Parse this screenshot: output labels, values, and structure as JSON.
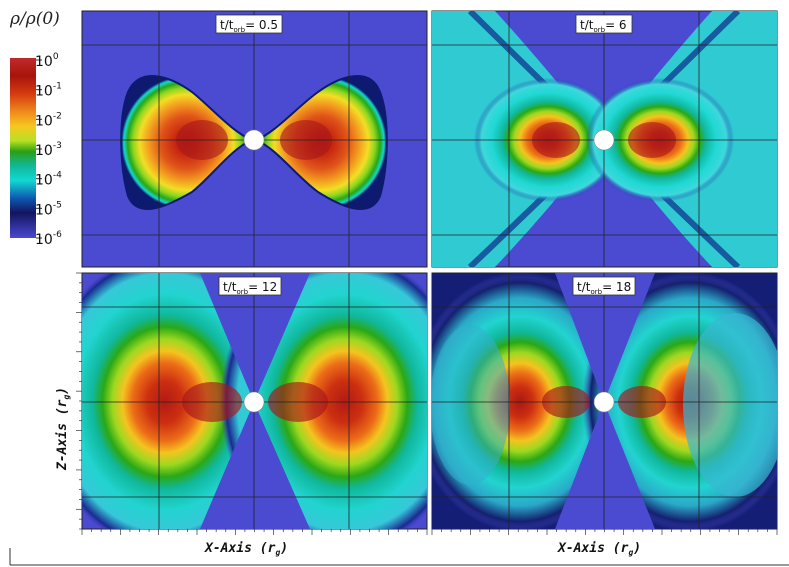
{
  "colorbar": {
    "title": "ρ/ρ(0)",
    "ticks": [
      {
        "base": "10",
        "exp": "0"
      },
      {
        "base": "10",
        "exp": "-1"
      },
      {
        "base": "10",
        "exp": "-2"
      },
      {
        "base": "10",
        "exp": "-3"
      },
      {
        "base": "10",
        "exp": "-4"
      },
      {
        "base": "10",
        "exp": "-5"
      },
      {
        "base": "10",
        "exp": "-6"
      }
    ],
    "stops": [
      "#d03030",
      "#b01a10",
      "#d23b0e",
      "#f0821b",
      "#f5c51e",
      "#e8ef2a",
      "#8fd21c",
      "#1f9f12",
      "#0fcfcb",
      "#0f6fc8",
      "#161a8a",
      "#4a4ad0"
    ]
  },
  "panels": [
    {
      "label_base": "t/t",
      "label_sub": "orb",
      "label_value": "= 0.5"
    },
    {
      "label_base": "t/t",
      "label_sub": "orb",
      "label_value": "= 6"
    },
    {
      "label_base": "t/t",
      "label_sub": "orb",
      "label_value": "= 12"
    },
    {
      "label_base": "t/t",
      "label_sub": "orb",
      "label_value": "= 18"
    }
  ],
  "axes": {
    "xlabel_left": "X-Axis (r",
    "xlabel_right": "X-Axis (r",
    "xlabel_sub": "g",
    "ylabel": "Z-Axis (r",
    "ylabel_sub": "g"
  },
  "colors": {
    "background_blue": "#4b4bd2"
  }
}
